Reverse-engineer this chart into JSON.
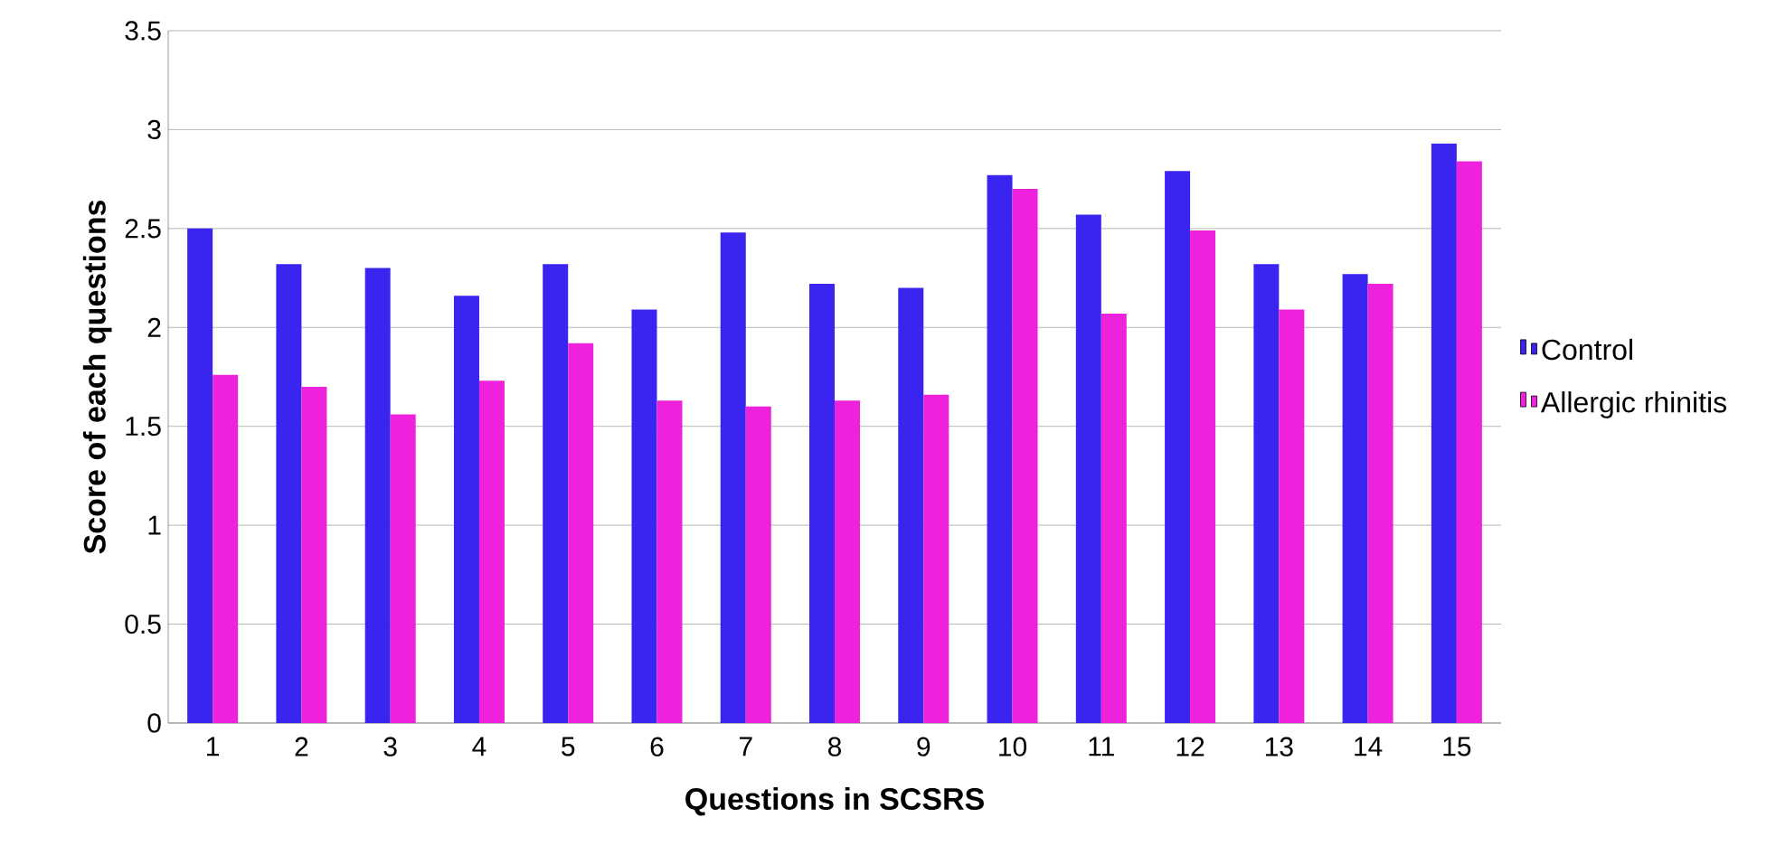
{
  "chart_data": {
    "type": "bar",
    "xlabel": "Questions in SCSRS",
    "ylabel": "Score of each questions",
    "categories": [
      "1",
      "2",
      "3",
      "4",
      "5",
      "6",
      "7",
      "8",
      "9",
      "10",
      "11",
      "12",
      "13",
      "14",
      "15"
    ],
    "series": [
      {
        "name": "Control",
        "color": "#3a24f0",
        "values": [
          2.5,
          2.32,
          2.3,
          2.16,
          2.32,
          2.09,
          2.48,
          2.22,
          2.2,
          2.77,
          2.57,
          2.79,
          2.32,
          2.27,
          2.93
        ]
      },
      {
        "name": "Allergic rhinitis",
        "color": "#ee22dd",
        "values": [
          1.76,
          1.7,
          1.56,
          1.73,
          1.92,
          1.63,
          1.6,
          1.63,
          1.66,
          2.7,
          2.07,
          2.49,
          2.09,
          2.22,
          2.84
        ]
      }
    ],
    "ylim": [
      0,
      3.5
    ],
    "yticks": [
      0,
      0.5,
      1,
      1.5,
      2,
      2.5,
      3,
      3.5
    ],
    "grid": "y",
    "legend": "right"
  }
}
